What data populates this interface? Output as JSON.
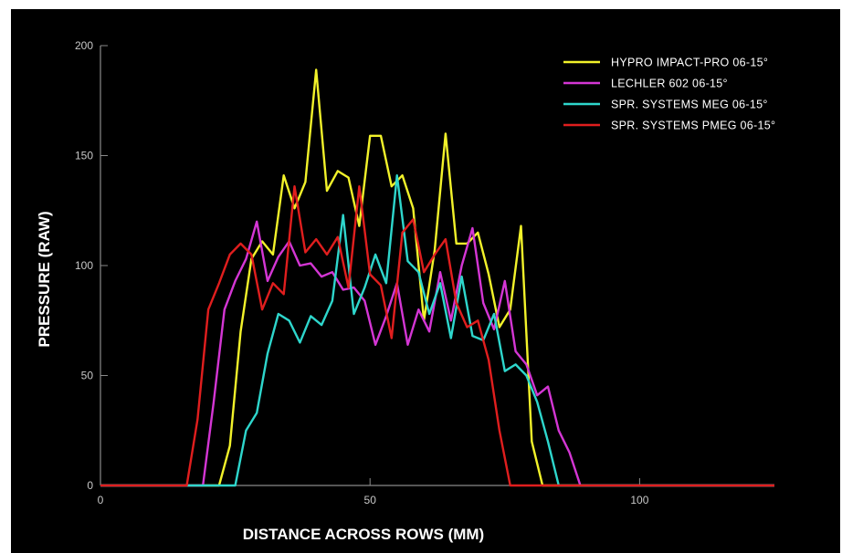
{
  "chart_data": {
    "type": "line",
    "xlabel": "DISTANCE ACROSS ROWS (MM)",
    "ylabel": "PRESSURE (RAW)",
    "xlim": [
      0,
      125
    ],
    "ylim": [
      0,
      200
    ],
    "xticks": [
      0,
      50,
      100
    ],
    "yticks": [
      0,
      50,
      100,
      150,
      200
    ],
    "grid": false,
    "legend_position": "top-right",
    "background": "#000000",
    "series": [
      {
        "name": "HYPRO IMPACT-PRO 06-15°",
        "color": "#f2f22a",
        "points": [
          [
            0,
            0
          ],
          [
            22,
            0
          ],
          [
            24,
            18
          ],
          [
            26,
            70
          ],
          [
            28,
            103
          ],
          [
            30,
            111
          ],
          [
            32,
            105
          ],
          [
            34,
            141
          ],
          [
            36,
            126
          ],
          [
            38,
            138
          ],
          [
            40,
            189
          ],
          [
            42,
            134
          ],
          [
            44,
            143
          ],
          [
            46,
            140
          ],
          [
            48,
            118
          ],
          [
            50,
            159
          ],
          [
            52,
            159
          ],
          [
            54,
            136
          ],
          [
            56,
            141
          ],
          [
            58,
            126
          ],
          [
            60,
            75
          ],
          [
            62,
            107
          ],
          [
            64,
            160
          ],
          [
            66,
            110
          ],
          [
            68,
            110
          ],
          [
            70,
            115
          ],
          [
            72,
            96
          ],
          [
            74,
            72
          ],
          [
            76,
            80
          ],
          [
            78,
            118
          ],
          [
            80,
            20
          ],
          [
            82,
            0
          ],
          [
            125,
            0
          ]
        ]
      },
      {
        "name": "LECHLER 602 06-15°",
        "color": "#d436d4",
        "points": [
          [
            0,
            0
          ],
          [
            19,
            0
          ],
          [
            21,
            38
          ],
          [
            23,
            80
          ],
          [
            25,
            93
          ],
          [
            27,
            103
          ],
          [
            29,
            120
          ],
          [
            31,
            93
          ],
          [
            33,
            104
          ],
          [
            35,
            111
          ],
          [
            37,
            100
          ],
          [
            39,
            101
          ],
          [
            41,
            95
          ],
          [
            43,
            97
          ],
          [
            45,
            89
          ],
          [
            47,
            90
          ],
          [
            49,
            84
          ],
          [
            51,
            64
          ],
          [
            53,
            77
          ],
          [
            55,
            92
          ],
          [
            57,
            64
          ],
          [
            59,
            80
          ],
          [
            61,
            70
          ],
          [
            63,
            97
          ],
          [
            65,
            75
          ],
          [
            67,
            100
          ],
          [
            69,
            117
          ],
          [
            71,
            83
          ],
          [
            73,
            71
          ],
          [
            75,
            93
          ],
          [
            77,
            61
          ],
          [
            79,
            55
          ],
          [
            81,
            41
          ],
          [
            83,
            45
          ],
          [
            85,
            25
          ],
          [
            87,
            15
          ],
          [
            89,
            0
          ],
          [
            125,
            0
          ]
        ]
      },
      {
        "name": "SPR. SYSTEMS MEG 06-15°",
        "color": "#2ed6cc",
        "points": [
          [
            0,
            0
          ],
          [
            25,
            0
          ],
          [
            27,
            25
          ],
          [
            29,
            33
          ],
          [
            31,
            60
          ],
          [
            33,
            78
          ],
          [
            35,
            75
          ],
          [
            37,
            65
          ],
          [
            39,
            77
          ],
          [
            41,
            73
          ],
          [
            43,
            84
          ],
          [
            45,
            123
          ],
          [
            47,
            78
          ],
          [
            49,
            90
          ],
          [
            51,
            105
          ],
          [
            53,
            92
          ],
          [
            55,
            141
          ],
          [
            57,
            102
          ],
          [
            59,
            97
          ],
          [
            61,
            78
          ],
          [
            63,
            92
          ],
          [
            65,
            67
          ],
          [
            67,
            95
          ],
          [
            69,
            68
          ],
          [
            71,
            66
          ],
          [
            73,
            78
          ],
          [
            75,
            52
          ],
          [
            77,
            55
          ],
          [
            79,
            50
          ],
          [
            81,
            38
          ],
          [
            83,
            20
          ],
          [
            85,
            0
          ],
          [
            125,
            0
          ]
        ]
      },
      {
        "name": "SPR. SYSTEMS PMEG 06-15°",
        "color": "#e01e1e",
        "points": [
          [
            0,
            0
          ],
          [
            16,
            0
          ],
          [
            18,
            30
          ],
          [
            20,
            80
          ],
          [
            22,
            92
          ],
          [
            24,
            105
          ],
          [
            26,
            110
          ],
          [
            28,
            105
          ],
          [
            30,
            80
          ],
          [
            32,
            92
          ],
          [
            34,
            87
          ],
          [
            36,
            136
          ],
          [
            38,
            106
          ],
          [
            40,
            112
          ],
          [
            42,
            105
          ],
          [
            44,
            113
          ],
          [
            46,
            90
          ],
          [
            48,
            136
          ],
          [
            50,
            96
          ],
          [
            52,
            91
          ],
          [
            54,
            67
          ],
          [
            56,
            115
          ],
          [
            58,
            121
          ],
          [
            60,
            97
          ],
          [
            62,
            105
          ],
          [
            64,
            112
          ],
          [
            66,
            83
          ],
          [
            68,
            72
          ],
          [
            70,
            75
          ],
          [
            72,
            57
          ],
          [
            74,
            25
          ],
          [
            76,
            0
          ],
          [
            125,
            0
          ]
        ]
      }
    ]
  }
}
